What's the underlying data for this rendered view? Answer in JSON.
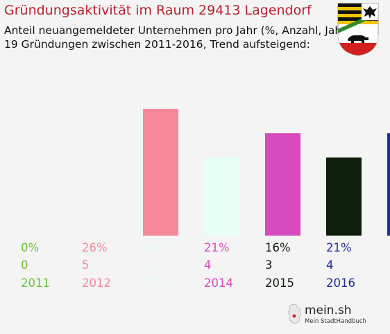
{
  "header": {
    "title": "Gründungsaktivität im Raum 29413 Lagendorf",
    "subtitle_line1": "Anteil neuangemeldeter Unternehmen pro Jahr (%, Anzahl, Jahr)",
    "subtitle_line2": "19 Gründungen zwischen 2011-2016, Trend aufsteigend:"
  },
  "crest": {
    "icon": "coat-of-arms-icon"
  },
  "logo": {
    "name": "mein.sh",
    "tagline": "Mein StadtHandbuch",
    "icon": "germany-map-icon"
  },
  "chart_data": {
    "type": "bar",
    "categories": [
      "2011",
      "2012",
      "2013",
      "2014",
      "2015",
      "2016"
    ],
    "values": [
      0,
      26,
      16,
      21,
      16,
      21
    ],
    "percent_labels": [
      "0%",
      "26%",
      "16%",
      "21%",
      "16%",
      "21%"
    ],
    "counts": [
      "0",
      "5",
      "3",
      "4",
      "3",
      "4"
    ],
    "colors": [
      "#6ac13a",
      "#f5899a",
      "#e8fff6",
      "#d64bbd",
      "#0e200b",
      "#1f2f9c"
    ],
    "ylim": [
      0,
      26
    ]
  }
}
